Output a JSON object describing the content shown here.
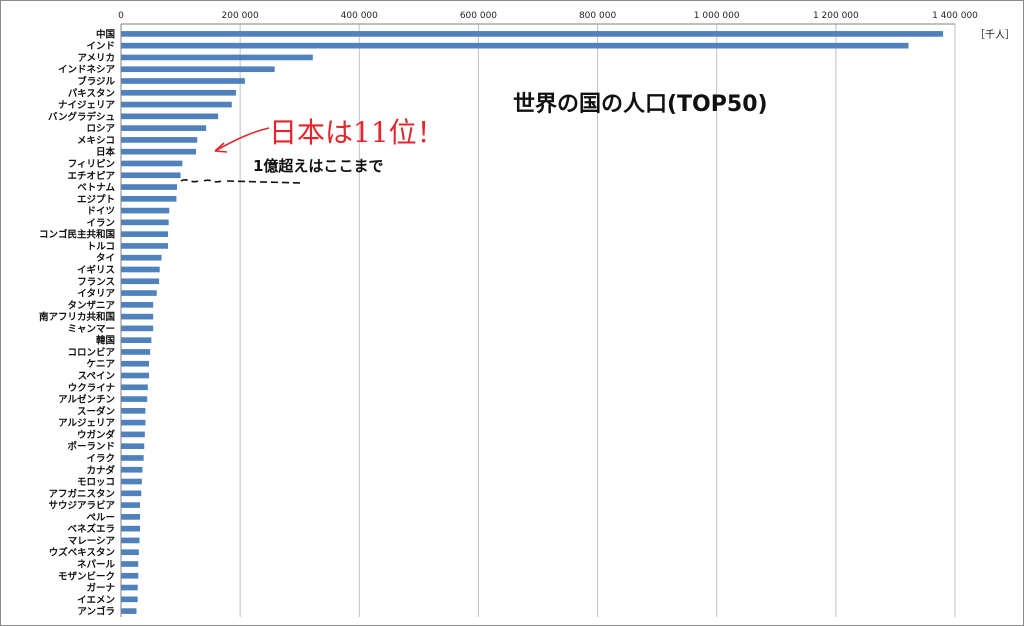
{
  "chart_data": {
    "type": "bar",
    "orientation": "horizontal",
    "title": "世界の国の人口(TOP50)",
    "unit": "［千人］",
    "xlim": [
      0,
      1400000
    ],
    "ticks": [
      0,
      200000,
      400000,
      600000,
      800000,
      1000000,
      1200000,
      1400000
    ],
    "tick_labels": [
      "0",
      "200 000",
      "400 000",
      "600 000",
      "800 000",
      "1 000 000",
      "1 200 000",
      "1 400 000"
    ],
    "grid": true,
    "bar_color": "#4f81bd",
    "categories": [
      "中国",
      "インド",
      "アメリカ",
      "インドネシア",
      "ブラジル",
      "パキスタン",
      "ナイジェリア",
      "バングラデシュ",
      "ロシア",
      "メキシコ",
      "日本",
      "フィリピン",
      "エチオピア",
      "ベトナム",
      "エジプト",
      "ドイツ",
      "イラン",
      "コンゴ民主共和国",
      "トルコ",
      "タイ",
      "イギリス",
      "フランス",
      "イタリア",
      "タンザニア",
      "南アフリカ共和国",
      "ミャンマー",
      "韓国",
      "コロンビア",
      "ケニア",
      "スペイン",
      "ウクライナ",
      "アルゼンチン",
      "スーダン",
      "アルジェリア",
      "ウガンダ",
      "ポーランド",
      "イラク",
      "カナダ",
      "モロッコ",
      "アフガニスタン",
      "サウジアラビア",
      "ペルー",
      "ベネズエラ",
      "マレーシア",
      "ウズベキスタン",
      "ネパール",
      "モザンビーク",
      "ガーナ",
      "イエメン",
      "アンゴラ"
    ],
    "values": [
      1380000,
      1322000,
      322000,
      258000,
      208000,
      193000,
      186000,
      163000,
      143000,
      128000,
      126000,
      103000,
      100000,
      94000,
      93000,
      81000,
      80000,
      79000,
      79000,
      68000,
      65000,
      64000,
      60000,
      54000,
      54000,
      54000,
      51000,
      49000,
      47000,
      47000,
      45000,
      44000,
      41000,
      41000,
      40000,
      39000,
      38000,
      36000,
      35000,
      34000,
      32000,
      32000,
      32000,
      31000,
      30000,
      29000,
      29000,
      28000,
      28000,
      26000
    ]
  },
  "annotations": {
    "handwritten": "日本は11位！",
    "note": "1億超えはここまで"
  },
  "colors": {
    "annotation_red": "#e3262b",
    "grid": "#c0c0c0",
    "axis": "#808080"
  }
}
